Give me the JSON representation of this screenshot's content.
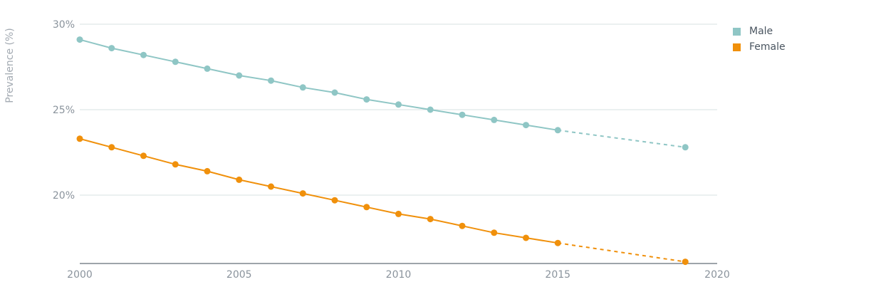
{
  "chart_data": {
    "type": "line",
    "xlabel": "",
    "ylabel": "Prevalence (%)",
    "xlim": [
      2000,
      2020
    ],
    "ylim": [
      16,
      30
    ],
    "x_ticks": [
      2000,
      2005,
      2010,
      2015,
      2020
    ],
    "y_ticks": [
      20,
      25,
      30
    ],
    "x_tick_labels": [
      "2000",
      "2005",
      "2010",
      "2015",
      "2020"
    ],
    "y_tick_labels": [
      "20%",
      "25%",
      "30%"
    ],
    "grid": "horizontal",
    "legend_position": "top-right",
    "series": [
      {
        "name": "Male",
        "color": "#8fc6c5",
        "x": [
          2000,
          2001,
          2002,
          2003,
          2004,
          2005,
          2006,
          2007,
          2008,
          2009,
          2010,
          2011,
          2012,
          2013,
          2014,
          2015
        ],
        "values": [
          29.1,
          28.6,
          28.2,
          27.8,
          27.4,
          27.0,
          26.7,
          26.3,
          26.0,
          25.6,
          25.3,
          25.0,
          24.7,
          24.4,
          24.1,
          23.8
        ],
        "projection": {
          "x": [
            2015,
            2019
          ],
          "values": [
            23.8,
            22.8
          ]
        }
      },
      {
        "name": "Female",
        "color": "#f0900b",
        "x": [
          2000,
          2001,
          2002,
          2003,
          2004,
          2005,
          2006,
          2007,
          2008,
          2009,
          2010,
          2011,
          2012,
          2013,
          2014,
          2015
        ],
        "values": [
          23.3,
          22.8,
          22.3,
          21.8,
          21.4,
          20.9,
          20.5,
          20.1,
          19.7,
          19.3,
          18.9,
          18.6,
          18.2,
          17.8,
          17.5,
          17.2
        ],
        "projection": {
          "x": [
            2015,
            2019
          ],
          "values": [
            17.2,
            16.1
          ]
        }
      }
    ]
  }
}
